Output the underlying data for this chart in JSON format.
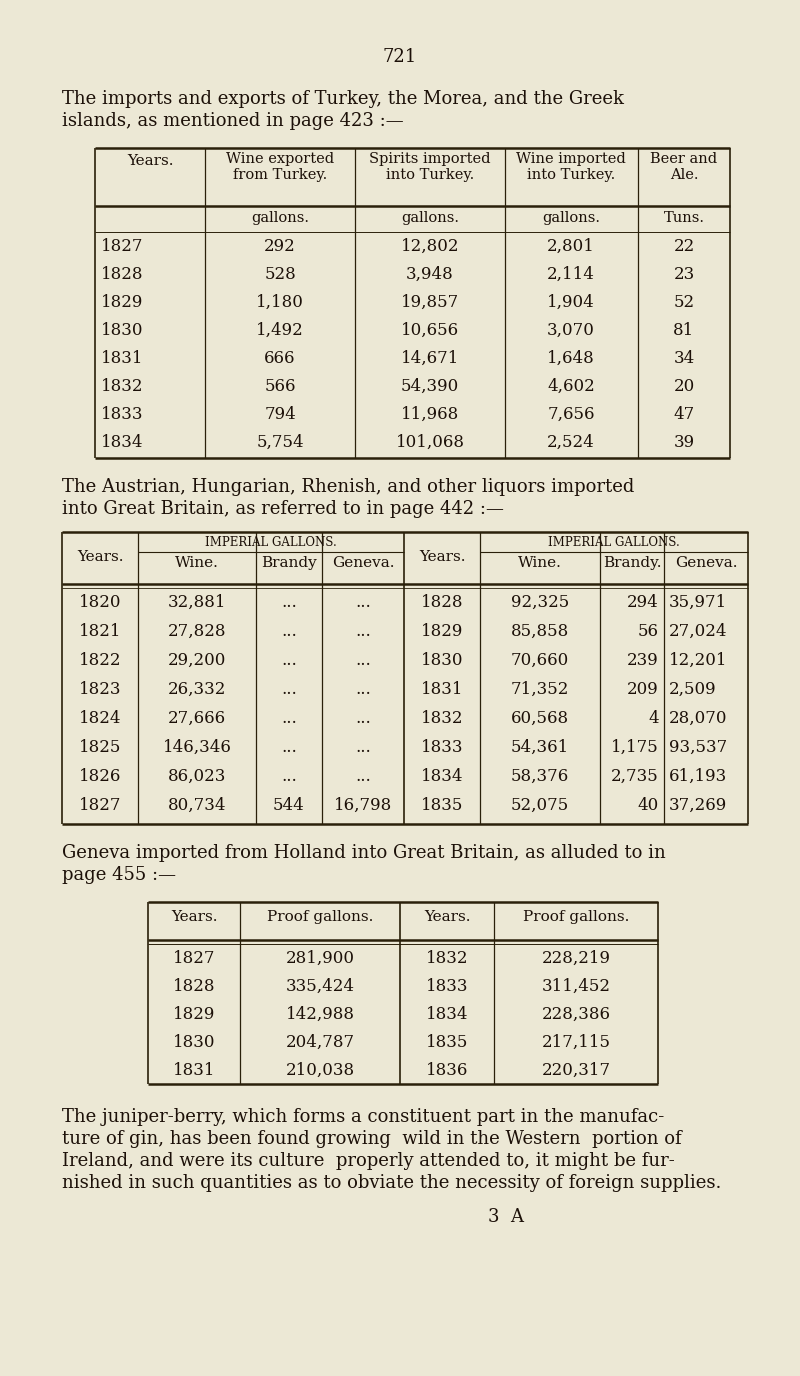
{
  "bg_color": "#ece8d5",
  "page_number": "721",
  "para1_line1": "The imports and exports of Turkey, the Morea, and the Greek",
  "para1_line2": "islands, as mentioned in page 423 :—",
  "table1_headers": [
    "Years.",
    "Wine exported\nfrom Turkey.",
    "Spirits imported\ninto Turkey.",
    "Wine imported\ninto Turkey.",
    "Beer and\nAle."
  ],
  "table1_subheaders": [
    "",
    "gallons.",
    "gallons.",
    "gallons.",
    "Tuns."
  ],
  "table1_data": [
    [
      "1827",
      "292",
      "12,802",
      "2,801",
      "22"
    ],
    [
      "1828",
      "528",
      "3,948",
      "2,114",
      "23"
    ],
    [
      "1829",
      "1,180",
      "19,857",
      "1,904",
      "52"
    ],
    [
      "1830",
      "1,492",
      "10,656",
      "3,070",
      "81"
    ],
    [
      "1831",
      "666",
      "14,671",
      "1,648",
      "34"
    ],
    [
      "1832",
      "566",
      "54,390",
      "4,602",
      "20"
    ],
    [
      "1833",
      "794",
      "11,968",
      "7,656",
      "47"
    ],
    [
      "1834",
      "5,754",
      "101,068",
      "2,524",
      "39"
    ]
  ],
  "para2_line1": "The Austrian, Hungarian, Rhenish, and other liquors imported",
  "para2_line2": "into Great Britain, as referred to in page 442 :—",
  "table2_data_left": [
    [
      "1820",
      "32,881",
      "...",
      "..."
    ],
    [
      "1821",
      "27,828",
      "...",
      "..."
    ],
    [
      "1822",
      "29,200",
      "...",
      "..."
    ],
    [
      "1823",
      "26,332",
      "...",
      "..."
    ],
    [
      "1824",
      "27,666",
      "...",
      "..."
    ],
    [
      "1825",
      "146,346",
      "...",
      "..."
    ],
    [
      "1826",
      "86,023",
      "...",
      "..."
    ],
    [
      "1827",
      "80,734",
      "544",
      "16,798"
    ]
  ],
  "table2_data_right": [
    [
      "1828",
      "92,325",
      "294",
      "35,971"
    ],
    [
      "1829",
      "85,858",
      "56",
      "27,024"
    ],
    [
      "1830",
      "70,660",
      "239",
      "12,201"
    ],
    [
      "1831",
      "71,352",
      "209",
      "2,509"
    ],
    [
      "1832",
      "60,568",
      "4",
      "28,070"
    ],
    [
      "1833",
      "54,361",
      "1,175",
      "93,537"
    ],
    [
      "1834",
      "58,376",
      "2,735",
      "61,193"
    ],
    [
      "1835",
      "52,075",
      "40",
      "37,269"
    ]
  ],
  "para3_line1": "Geneva imported from Holland into Great Britain, as alluded to in",
  "para3_line2": "page 455 :—",
  "table3_data_left": [
    [
      "1827",
      "281,900"
    ],
    [
      "1828",
      "335,424"
    ],
    [
      "1829",
      "142,988"
    ],
    [
      "1830",
      "204,787"
    ],
    [
      "1831",
      "210,038"
    ]
  ],
  "table3_data_right": [
    [
      "1832",
      "228,219"
    ],
    [
      "1833",
      "311,452"
    ],
    [
      "1834",
      "228,386"
    ],
    [
      "1835",
      "217,115"
    ],
    [
      "1836",
      "220,317"
    ]
  ],
  "para4_line1": "The juniper-berry, which forms a constituent part in the manufac-",
  "para4_line2": "ture of gin, has been found growing  wild in the Western  portion of",
  "para4_line3": "Ireland, and were its culture  properly attended to, it might be fur-",
  "para4_line4": "nished in such quantities as to obviate the necessity of foreign supplies.",
  "footer": "3  A",
  "text_color": "#1c1008",
  "line_color": "#2a200a"
}
